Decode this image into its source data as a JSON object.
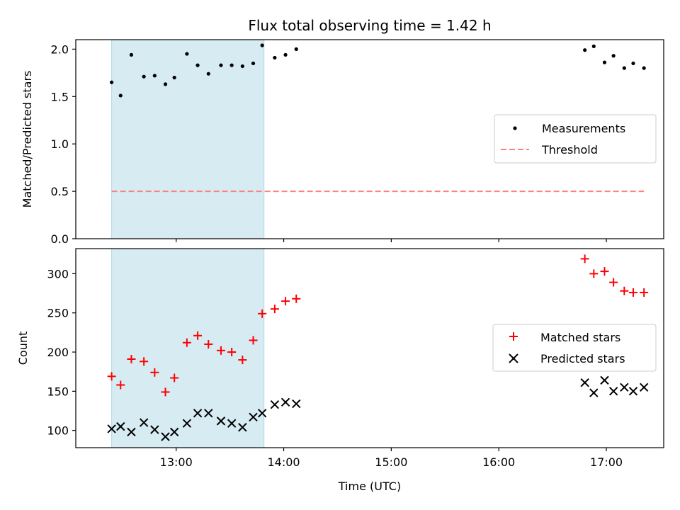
{
  "chart_data": {
    "title": "Flux total observing time = 1.42 h",
    "xlabel": "Time (UTC)",
    "x_ticks": [
      "13:00",
      "14:00",
      "15:00",
      "16:00",
      "17:00"
    ],
    "shaded_span": [
      "12:24",
      "13:49"
    ],
    "span_color": "#add8e6",
    "panels": [
      {
        "type": "scatter",
        "ylabel": "Matched/Predicted stars",
        "ylim": [
          0,
          2.1
        ],
        "y_ticks": [
          "0.0",
          "0.5",
          "1.0",
          "1.5",
          "2.0"
        ],
        "legend_position": "center-right",
        "series": [
          {
            "name": "Measurements",
            "marker": "dot",
            "color": "#000000",
            "x": [
              "12:24",
              "12:29",
              "12:35",
              "12:42",
              "12:48",
              "12:54",
              "12:59",
              "13:06",
              "13:12",
              "13:18",
              "13:25",
              "13:31",
              "13:37",
              "13:43",
              "13:48",
              "13:55",
              "14:01",
              "14:07",
              "16:48",
              "16:53",
              "16:59",
              "17:04",
              "17:10",
              "17:15",
              "17:21"
            ],
            "y": [
              1.65,
              1.51,
              1.94,
              1.71,
              1.72,
              1.63,
              1.7,
              1.95,
              1.83,
              1.74,
              1.83,
              1.83,
              1.82,
              1.85,
              2.04,
              1.91,
              1.94,
              2.0,
              1.99,
              2.03,
              1.86,
              1.93,
              1.8,
              1.85,
              1.8
            ]
          },
          {
            "name": "Threshold",
            "type": "line",
            "style": "dashed",
            "color": "#ff7f7f",
            "x": [
              "12:24",
              "17:21"
            ],
            "y": [
              0.5,
              0.5
            ]
          }
        ]
      },
      {
        "type": "scatter",
        "ylabel": "Count",
        "ylim": [
          78,
          332
        ],
        "y_ticks": [
          "100",
          "150",
          "200",
          "250",
          "300"
        ],
        "legend_position": "center-right",
        "series": [
          {
            "name": "Matched stars",
            "marker": "plus",
            "color": "#ff0000",
            "x": [
              "12:24",
              "12:29",
              "12:35",
              "12:42",
              "12:48",
              "12:54",
              "12:59",
              "13:06",
              "13:12",
              "13:18",
              "13:25",
              "13:31",
              "13:37",
              "13:43",
              "13:48",
              "13:55",
              "14:01",
              "14:07",
              "16:48",
              "16:53",
              "16:59",
              "17:04",
              "17:10",
              "17:15",
              "17:21"
            ],
            "y": [
              169,
              158,
              191,
              188,
              174,
              149,
              167,
              212,
              221,
              210,
              202,
              200,
              190,
              215,
              249,
              255,
              265,
              268,
              319,
              300,
              303,
              289,
              278,
              276,
              276
            ]
          },
          {
            "name": "Predicted stars",
            "marker": "x",
            "color": "#000000",
            "x": [
              "12:24",
              "12:29",
              "12:35",
              "12:42",
              "12:48",
              "12:54",
              "12:59",
              "13:06",
              "13:12",
              "13:18",
              "13:25",
              "13:31",
              "13:37",
              "13:43",
              "13:48",
              "13:55",
              "14:01",
              "14:07",
              "16:48",
              "16:53",
              "16:59",
              "17:04",
              "17:10",
              "17:15",
              "17:21"
            ],
            "y": [
              102,
              105,
              98,
              110,
              101,
              92,
              98,
              109,
              122,
              122,
              112,
              109,
              104,
              117,
              122,
              133,
              136,
              134,
              161,
              148,
              164,
              150,
              155,
              150,
              155
            ]
          }
        ]
      }
    ]
  }
}
